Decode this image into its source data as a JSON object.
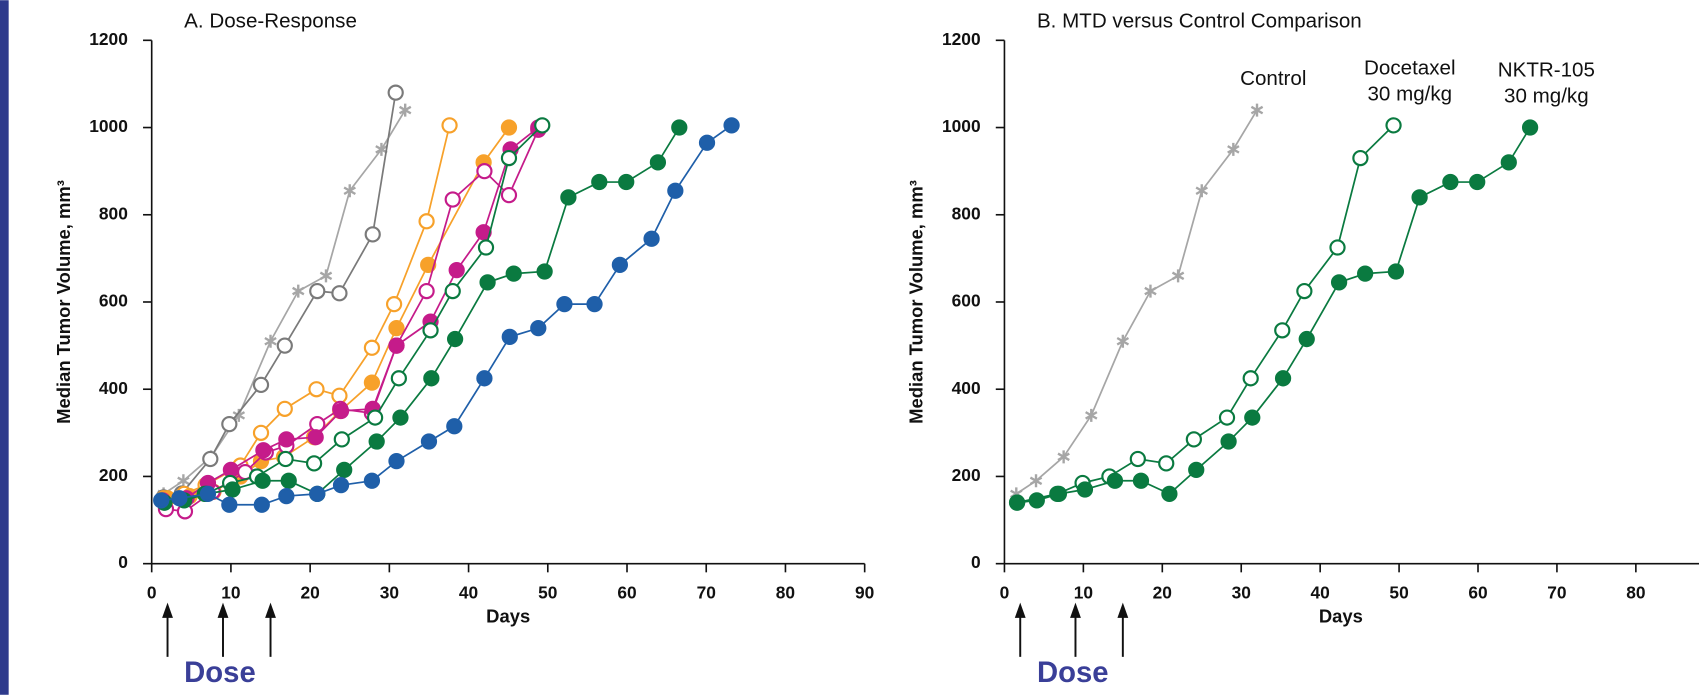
{
  "chart_data": [
    {
      "type": "line",
      "title": "A. Dose-Response",
      "xlabel": "Days",
      "ylabel": "Median Tumor Volume, mm³",
      "xlim": [
        0,
        90
      ],
      "ylim": [
        0,
        1200
      ],
      "xticks": [
        0,
        10,
        20,
        30,
        40,
        50,
        60,
        70,
        80,
        90
      ],
      "yticks": [
        0,
        200,
        400,
        600,
        800,
        1000,
        1200
      ],
      "annotation": "Dose",
      "dose_days": [
        2,
        9,
        15
      ],
      "series": [
        {
          "color": "#a6a6a6",
          "marker": "asterisk",
          "x": [
            1.5,
            4,
            7.5,
            11,
            15,
            18.5,
            22,
            25,
            29,
            32
          ],
          "values": [
            160,
            190,
            245,
            340,
            510,
            625,
            660,
            855,
            950,
            1040
          ]
        },
        {
          "color": "#7a7a7a",
          "marker": "open",
          "x": [
            1.5,
            3.8,
            7.4,
            9.8,
            13.8,
            16.8,
            20.9,
            23.7,
            27.9,
            30.8
          ],
          "values": [
            152,
            161,
            240,
            320,
            410,
            500,
            625,
            620,
            755,
            1080
          ]
        },
        {
          "color": "#f7a12a",
          "marker": "open",
          "x": [
            1.5,
            4.1,
            6.8,
            11.2,
            13.8,
            16.8,
            20.8,
            23.7,
            27.8,
            30.6,
            34.7,
            37.6
          ],
          "values": [
            150,
            160,
            180,
            225,
            300,
            355,
            400,
            385,
            495,
            595,
            785,
            1005
          ]
        },
        {
          "color": "#f7a12a",
          "marker": "filled",
          "x": [
            2,
            4.8,
            7.8,
            11.2,
            13.8,
            16.7,
            20.5,
            23.8,
            27.8,
            30.9,
            34.9,
            41.9,
            45.1
          ],
          "values": [
            150,
            155,
            165,
            200,
            235,
            245,
            290,
            350,
            415,
            540,
            685,
            920,
            1000
          ]
        },
        {
          "color": "#c51b8a",
          "marker": "open",
          "x": [
            1.8,
            4.2,
            7.7,
            11.8,
            14.4,
            17,
            20.9,
            23.8,
            27.8,
            30.9,
            34.7,
            38,
            42,
            45.1,
            48.8
          ],
          "values": [
            125,
            120,
            165,
            210,
            255,
            270,
            320,
            355,
            345,
            500,
            625,
            835,
            900,
            845,
            995
          ]
        },
        {
          "color": "#c51b8a",
          "marker": "filled",
          "x": [
            1.4,
            4.4,
            7.1,
            10,
            14.1,
            17,
            20.7,
            23.9,
            27.9,
            30.9,
            35.2,
            38.5,
            41.9,
            45.3,
            48.8
          ],
          "values": [
            145,
            150,
            185,
            215,
            260,
            285,
            290,
            350,
            355,
            500,
            555,
            673,
            760,
            950,
            1000
          ]
        },
        {
          "color": "#0a7a40",
          "marker": "open",
          "x": [
            1.6,
            6.7,
            9.9,
            13.3,
            16.9,
            20.5,
            24,
            28.2,
            31.2,
            35.2,
            38,
            42.2,
            45.1,
            49.3
          ],
          "values": [
            140,
            160,
            185,
            200,
            240,
            230,
            285,
            335,
            425,
            535,
            625,
            725,
            930,
            1005
          ]
        },
        {
          "color": "#0a7a40",
          "marker": "filled",
          "x": [
            1.6,
            4.1,
            6.9,
            10.2,
            14,
            17.3,
            20.9,
            24.3,
            28.4,
            31.4,
            35.3,
            38.3,
            42.4,
            45.7,
            49.6,
            52.6,
            56.5,
            59.9,
            63.9,
            66.6
          ],
          "values": [
            140,
            145,
            160,
            170,
            190,
            190,
            160,
            215,
            280,
            335,
            425,
            515,
            645,
            665,
            670,
            840,
            875,
            875,
            920,
            1000
          ]
        },
        {
          "color": "#1f5fa9",
          "marker": "filled",
          "x": [
            1.2,
            3.5,
            7.1,
            9.8,
            13.9,
            17,
            20.9,
            23.9,
            27.8,
            30.9,
            35,
            38.2,
            42,
            45.2,
            48.8,
            52.1,
            55.9,
            59.1,
            63.1,
            66.1,
            70.1,
            73.2
          ],
          "values": [
            145,
            150,
            160,
            135,
            135,
            155,
            160,
            180,
            190,
            235,
            280,
            315,
            425,
            520,
            540,
            595,
            595,
            685,
            745,
            855,
            965,
            1005
          ]
        }
      ]
    },
    {
      "type": "line",
      "title": "B. MTD versus Control Comparison",
      "xlabel": "Days",
      "ylabel": "Median Tumor Volume, mm³",
      "xlim": [
        0,
        88
      ],
      "ylim": [
        0,
        1200
      ],
      "xticks": [
        0,
        10,
        20,
        30,
        40,
        50,
        60,
        70,
        80
      ],
      "yticks": [
        0,
        200,
        400,
        600,
        800,
        1000,
        1200
      ],
      "annotation": "Dose",
      "dose_days": [
        2,
        9,
        15
      ],
      "series": [
        {
          "label": [
            "Control"
          ],
          "color": "#a6a6a6",
          "marker": "asterisk",
          "x": [
            1.5,
            4,
            7.5,
            11,
            15,
            18.5,
            22,
            25,
            29,
            32
          ],
          "values": [
            160,
            190,
            245,
            340,
            510,
            625,
            660,
            855,
            950,
            1040
          ]
        },
        {
          "label": [
            "Docetaxel",
            "30 mg/kg"
          ],
          "color": "#0a7a40",
          "marker": "open",
          "x": [
            1.6,
            6.7,
            9.9,
            13.3,
            16.9,
            20.5,
            24,
            28.2,
            31.2,
            35.2,
            38,
            42.2,
            45.1,
            49.3
          ],
          "values": [
            140,
            160,
            185,
            200,
            240,
            230,
            285,
            335,
            425,
            535,
            625,
            725,
            930,
            1005
          ]
        },
        {
          "label": [
            "NKTR-105",
            "30 mg/kg"
          ],
          "color": "#0a7a40",
          "marker": "filled",
          "x": [
            1.6,
            4.1,
            6.9,
            10.2,
            14,
            17.3,
            20.9,
            24.3,
            28.4,
            31.4,
            35.3,
            38.3,
            42.4,
            45.7,
            49.6,
            52.6,
            56.5,
            59.9,
            63.9,
            66.6
          ],
          "values": [
            140,
            145,
            160,
            170,
            190,
            190,
            160,
            215,
            280,
            335,
            425,
            515,
            645,
            665,
            670,
            840,
            875,
            875,
            920,
            1000
          ]
        }
      ]
    }
  ]
}
